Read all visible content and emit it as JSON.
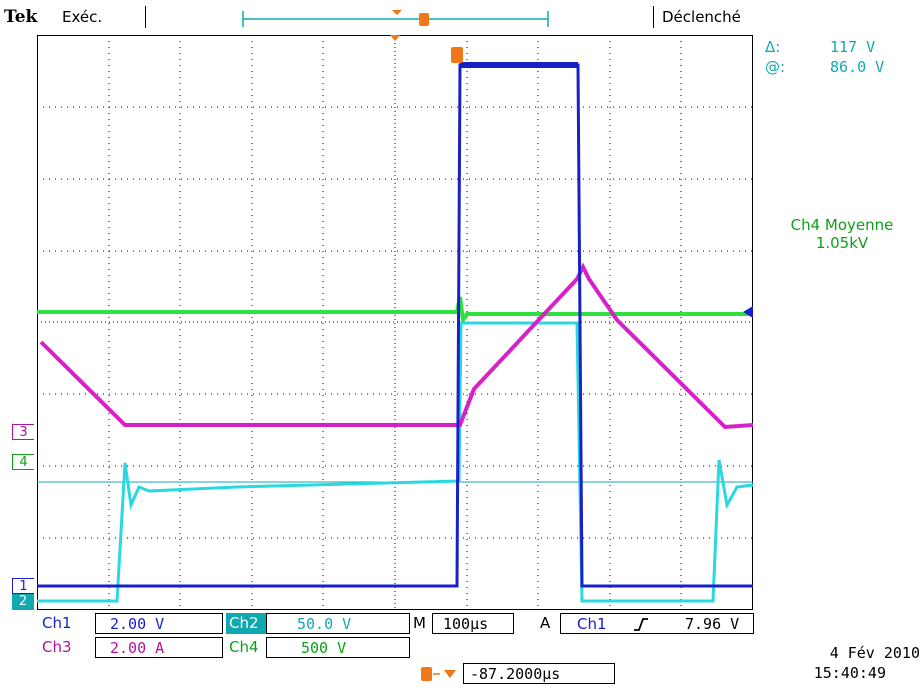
{
  "header": {
    "brand": "Tek",
    "run_state": "Exéc.",
    "trigger_state": "Déclenché"
  },
  "cursor_readout": {
    "delta_symbol": "Δ:",
    "delta_value": "117 V",
    "at_symbol": "@:",
    "at_value": "86.0 V"
  },
  "measurement": {
    "title": "Ch4 Moyenne",
    "value": "1.05kV"
  },
  "markers": {
    "trigger": "T",
    "ch3": "3",
    "ch4": "4",
    "ch1": "1",
    "ch2": "2"
  },
  "settings": {
    "ch1_label": "Ch1",
    "ch1_scale": "2.00 V",
    "ch2_label": "Ch2",
    "ch2_scale": "50.0 V",
    "ch3_label": "Ch3",
    "ch3_scale": "2.00 A",
    "ch4_label": "Ch4",
    "ch4_scale": "500 V",
    "timebase_label": "M",
    "timebase_value": "100µs",
    "trigger_mode": "A",
    "trigger_source": "Ch1",
    "trigger_slope_icon": "rising-edge-icon",
    "trigger_level": "7.96 V",
    "trigger_position": "-87.2000µs"
  },
  "datetime": {
    "date": "4 Fév  2010",
    "time": "15:40:49"
  },
  "colors": {
    "ch1": "#1820c8",
    "ch2": "#2ad8e0",
    "ch3": "#d820c8",
    "ch4": "#2ee040",
    "trigger": "#f07818"
  }
}
